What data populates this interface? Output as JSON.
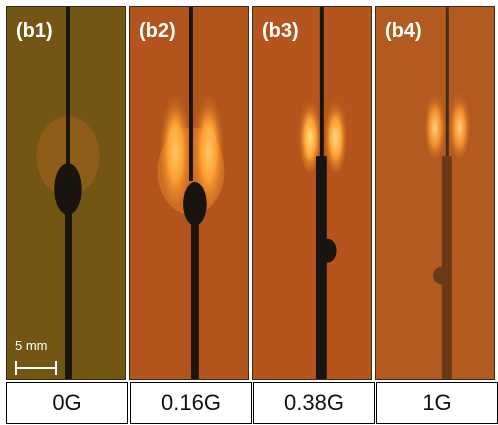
{
  "panels": [
    {
      "tag": "(b1)",
      "label": "0G"
    },
    {
      "tag": "(b2)",
      "label": "0.16G"
    },
    {
      "tag": "(b3)",
      "label": "0.38G"
    },
    {
      "tag": "(b4)",
      "label": "1G"
    }
  ],
  "scale_bar": {
    "label": "5 mm"
  },
  "colors": {
    "panel1_bg": "#6e5012",
    "panel2_bg": "#b2541b",
    "panel3_bg": "#b5541c",
    "panel4_bg": "#b35a20",
    "wire": "#1a140e",
    "flame_core": "#ffd27a",
    "flame_outer": "#ff8a1e"
  }
}
